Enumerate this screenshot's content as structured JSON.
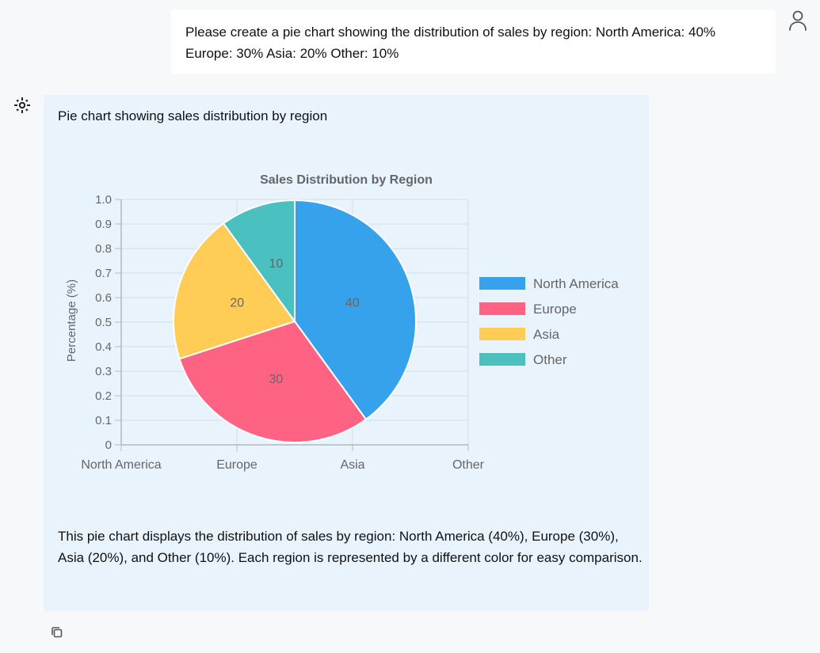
{
  "user_message": {
    "line1": "Please create a pie chart showing the distribution of sales by region: North America: 40%",
    "line2": "Europe: 30% Asia: 20% Other: 10%"
  },
  "assistant": {
    "intro": "Pie chart showing sales distribution by region",
    "summary": "This pie chart displays the distribution of sales by region: North America (40%), Europe (30%), Asia (20%), and Other (10%). Each region is represented by a different color for easy comparison."
  },
  "icons": {
    "user": "user-icon",
    "assistant": "assistant-logo-icon",
    "copy": "copy-icon"
  },
  "chart_data": {
    "type": "pie",
    "title": "Sales Distribution by Region",
    "ylabel": "Percentage (%)",
    "xlabel": "",
    "categories": [
      "North America",
      "Europe",
      "Asia",
      "Other"
    ],
    "values": [
      40,
      30,
      20,
      10
    ],
    "colors": [
      "#36a2eb",
      "#ff6384",
      "#ffcd56",
      "#4bc0c0"
    ],
    "yticks": [
      "0",
      "0.1",
      "0.2",
      "0.3",
      "0.4",
      "0.5",
      "0.6",
      "0.7",
      "0.8",
      "0.9",
      "1.0"
    ],
    "ylim": [
      0,
      1
    ],
    "grid": true,
    "legend_position": "right"
  }
}
